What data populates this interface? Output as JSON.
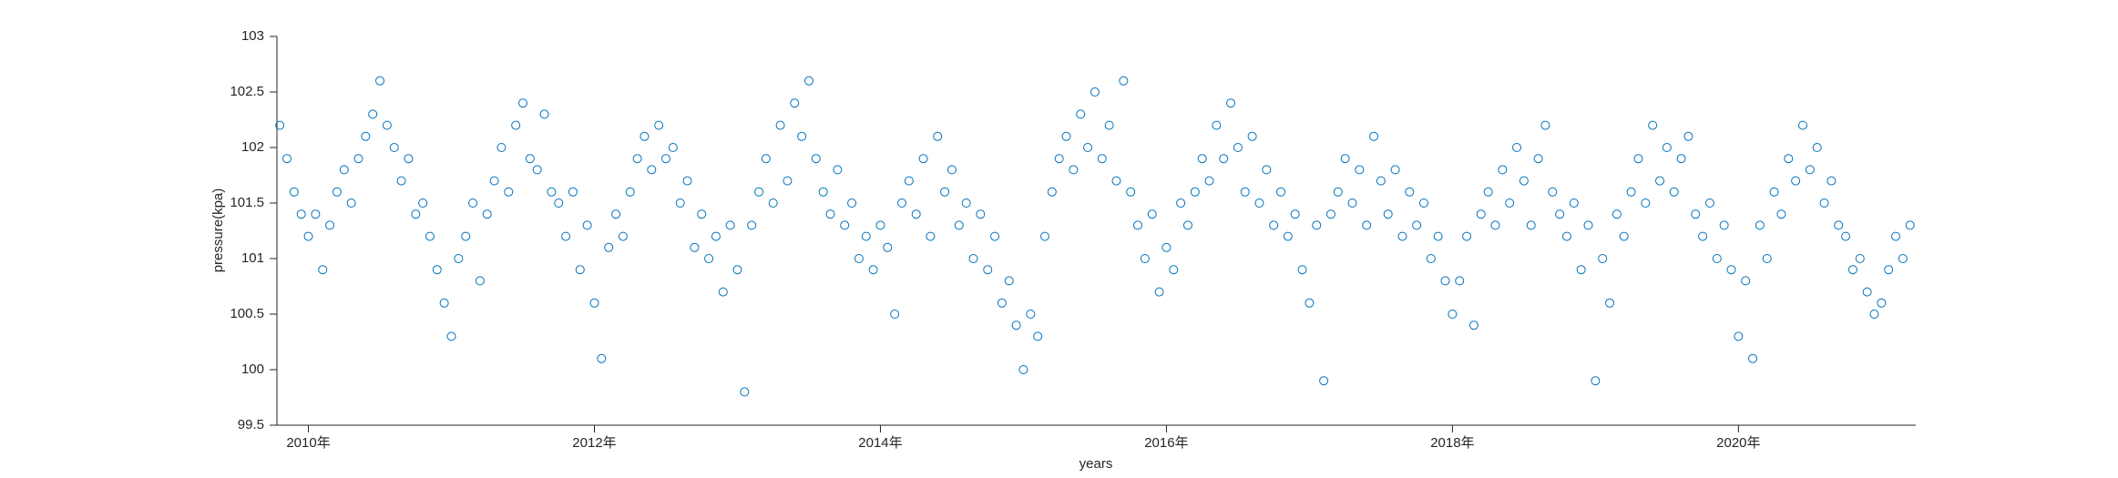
{
  "chart_data": {
    "type": "scatter",
    "xlabel": "years",
    "ylabel": "pressure(kpa)",
    "color": "#0072BD",
    "xlim": [
      2009.78,
      2021.24
    ],
    "xticks": [
      {
        "value": 2010,
        "label": "2010年"
      },
      {
        "value": 2012,
        "label": "2012年"
      },
      {
        "value": 2014,
        "label": "2014年"
      },
      {
        "value": 2016,
        "label": "2016年"
      },
      {
        "value": 2018,
        "label": "2018年"
      },
      {
        "value": 2020,
        "label": "2020年"
      }
    ],
    "ylim": [
      99.5,
      103
    ],
    "yticks": [
      99.5,
      100,
      100.5,
      101,
      101.5,
      102,
      102.5,
      103
    ],
    "x": [
      2009.8,
      2009.85,
      2009.9,
      2009.95,
      2010,
      2010.05,
      2010.1,
      2010.15,
      2010.2,
      2010.25,
      2010.3,
      2010.35,
      2010.4,
      2010.45,
      2010.5,
      2010.55,
      2010.6,
      2010.65,
      2010.7,
      2010.75,
      2010.8,
      2010.85,
      2010.9,
      2010.95,
      2011,
      2011.05,
      2011.1,
      2011.15,
      2011.2,
      2011.25,
      2011.3,
      2011.35,
      2011.4,
      2011.45,
      2011.5,
      2011.55,
      2011.6,
      2011.65,
      2011.7,
      2011.75,
      2011.8,
      2011.85,
      2011.9,
      2011.95,
      2012,
      2012.05,
      2012.1,
      2012.15,
      2012.2,
      2012.25,
      2012.3,
      2012.35,
      2012.4,
      2012.45,
      2012.5,
      2012.55,
      2012.6,
      2012.65,
      2012.7,
      2012.75,
      2012.8,
      2012.85,
      2012.9,
      2012.95,
      2013,
      2013.05,
      2013.1,
      2013.15,
      2013.2,
      2013.25,
      2013.3,
      2013.35,
      2013.4,
      2013.45,
      2013.5,
      2013.55,
      2013.6,
      2013.65,
      2013.7,
      2013.75,
      2013.8,
      2013.85,
      2013.9,
      2013.95,
      2014,
      2014.05,
      2014.1,
      2014.15,
      2014.2,
      2014.25,
      2014.3,
      2014.35,
      2014.4,
      2014.45,
      2014.5,
      2014.55,
      2014.6,
      2014.65,
      2014.7,
      2014.75,
      2014.8,
      2014.85,
      2014.9,
      2014.95,
      2015,
      2015.05,
      2015.1,
      2015.15,
      2015.2,
      2015.25,
      2015.3,
      2015.35,
      2015.4,
      2015.45,
      2015.5,
      2015.55,
      2015.6,
      2015.65,
      2015.7,
      2015.75,
      2015.8,
      2015.85,
      2015.9,
      2015.95,
      2016,
      2016.05,
      2016.1,
      2016.15,
      2016.2,
      2016.25,
      2016.3,
      2016.35,
      2016.4,
      2016.45,
      2016.5,
      2016.55,
      2016.6,
      2016.65,
      2016.7,
      2016.75,
      2016.8,
      2016.85,
      2016.9,
      2016.95,
      2017,
      2017.05,
      2017.1,
      2017.15,
      2017.2,
      2017.25,
      2017.3,
      2017.35,
      2017.4,
      2017.45,
      2017.5,
      2017.55,
      2017.6,
      2017.65,
      2017.7,
      2017.75,
      2017.8,
      2017.85,
      2017.9,
      2017.95,
      2018,
      2018.05,
      2018.1,
      2018.15,
      2018.2,
      2018.25,
      2018.3,
      2018.35,
      2018.4,
      2018.45,
      2018.5,
      2018.55,
      2018.6,
      2018.65,
      2018.7,
      2018.75,
      2018.8,
      2018.85,
      2018.9,
      2018.95,
      2019,
      2019.05,
      2019.1,
      2019.15,
      2019.2,
      2019.25,
      2019.3,
      2019.35,
      2019.4,
      2019.45,
      2019.5,
      2019.55,
      2019.6,
      2019.65,
      2019.7,
      2019.75,
      2019.8,
      2019.85,
      2019.9,
      2019.95,
      2020,
      2020.05,
      2020.1,
      2020.15,
      2020.2,
      2020.25,
      2020.3,
      2020.35,
      2020.4,
      2020.45,
      2020.5,
      2020.55,
      2020.6,
      2020.65,
      2020.7,
      2020.75,
      2020.8,
      2020.85,
      2020.9,
      2020.95,
      2021,
      2021.05,
      2021.1,
      2021.15,
      2021.2
    ],
    "values": [
      102.2,
      101.9,
      101.6,
      101.4,
      101.2,
      101.4,
      100.9,
      101.3,
      101.6,
      101.8,
      101.5,
      101.9,
      102.1,
      102.3,
      102.6,
      102.2,
      102.0,
      101.7,
      101.9,
      101.4,
      101.5,
      101.2,
      100.9,
      100.6,
      100.3,
      101.0,
      101.2,
      101.5,
      100.8,
      101.4,
      101.7,
      102.0,
      101.6,
      102.2,
      102.4,
      101.9,
      101.8,
      102.3,
      101.6,
      101.5,
      101.2,
      101.6,
      100.9,
      101.3,
      100.6,
      100.1,
      101.1,
      101.4,
      101.2,
      101.6,
      101.9,
      102.1,
      101.8,
      102.2,
      101.9,
      102.0,
      101.5,
      101.7,
      101.1,
      101.4,
      101.0,
      101.2,
      100.7,
      101.3,
      100.9,
      99.8,
      101.3,
      101.6,
      101.9,
      101.5,
      102.2,
      101.7,
      102.4,
      102.1,
      102.6,
      101.9,
      101.6,
      101.4,
      101.8,
      101.3,
      101.5,
      101.0,
      101.2,
      100.9,
      101.3,
      101.1,
      100.5,
      101.5,
      101.7,
      101.4,
      101.9,
      101.2,
      102.1,
      101.6,
      101.8,
      101.3,
      101.5,
      101.0,
      101.4,
      100.9,
      101.2,
      100.6,
      100.8,
      100.4,
      100.0,
      100.5,
      100.3,
      101.2,
      101.6,
      101.9,
      102.1,
      101.8,
      102.3,
      102.0,
      102.5,
      101.9,
      102.2,
      101.7,
      102.6,
      101.6,
      101.3,
      101.0,
      101.4,
      100.7,
      101.1,
      100.9,
      101.5,
      101.3,
      101.6,
      101.9,
      101.7,
      102.2,
      101.9,
      102.4,
      102.0,
      101.6,
      102.1,
      101.5,
      101.8,
      101.3,
      101.6,
      101.2,
      101.4,
      100.9,
      100.6,
      101.3,
      99.9,
      101.4,
      101.6,
      101.9,
      101.5,
      101.8,
      101.3,
      102.1,
      101.7,
      101.4,
      101.8,
      101.2,
      101.6,
      101.3,
      101.5,
      101.0,
      101.2,
      100.8,
      100.5,
      100.8,
      101.2,
      100.4,
      101.4,
      101.6,
      101.3,
      101.8,
      101.5,
      102.0,
      101.7,
      101.3,
      101.9,
      102.2,
      101.6,
      101.4,
      101.2,
      101.5,
      100.9,
      101.3,
      99.9,
      101.0,
      100.6,
      101.4,
      101.2,
      101.6,
      101.9,
      101.5,
      102.2,
      101.7,
      102.0,
      101.6,
      101.9,
      102.1,
      101.4,
      101.2,
      101.5,
      101.0,
      101.3,
      100.9,
      100.3,
      100.8,
      100.1,
      101.3,
      101.0,
      101.6,
      101.4,
      101.9,
      101.7,
      102.2,
      101.8,
      102.0,
      101.5,
      101.7,
      101.3,
      101.2,
      100.9,
      101.0,
      100.7,
      100.5,
      100.6,
      100.9,
      101.2,
      101.0,
      101.3
    ]
  }
}
